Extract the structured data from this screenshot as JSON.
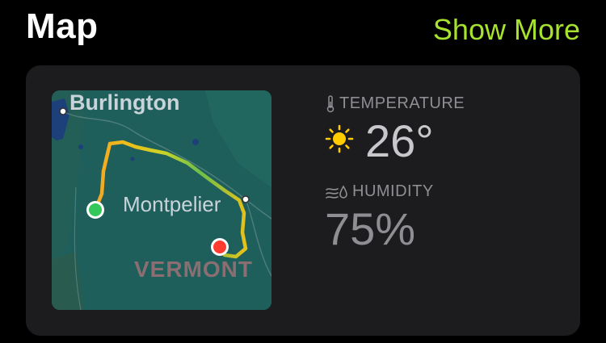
{
  "header": {
    "title": "Map",
    "show_more": "Show More"
  },
  "map": {
    "labels": {
      "burlington": "Burlington",
      "montpelier": "Montpelier",
      "vermont": "VERMONT"
    },
    "start_color": "#34c759",
    "end_color": "#ff3b30"
  },
  "temperature": {
    "label": "TEMPERATURE",
    "icon": "sun-icon",
    "value": "26°"
  },
  "humidity": {
    "label": "HUMIDITY",
    "icon": "wind-drop-icon",
    "value": "75%"
  },
  "colors": {
    "accent": "#a6e22e",
    "card": "#1c1c1e",
    "sun": "#ffcc00"
  }
}
